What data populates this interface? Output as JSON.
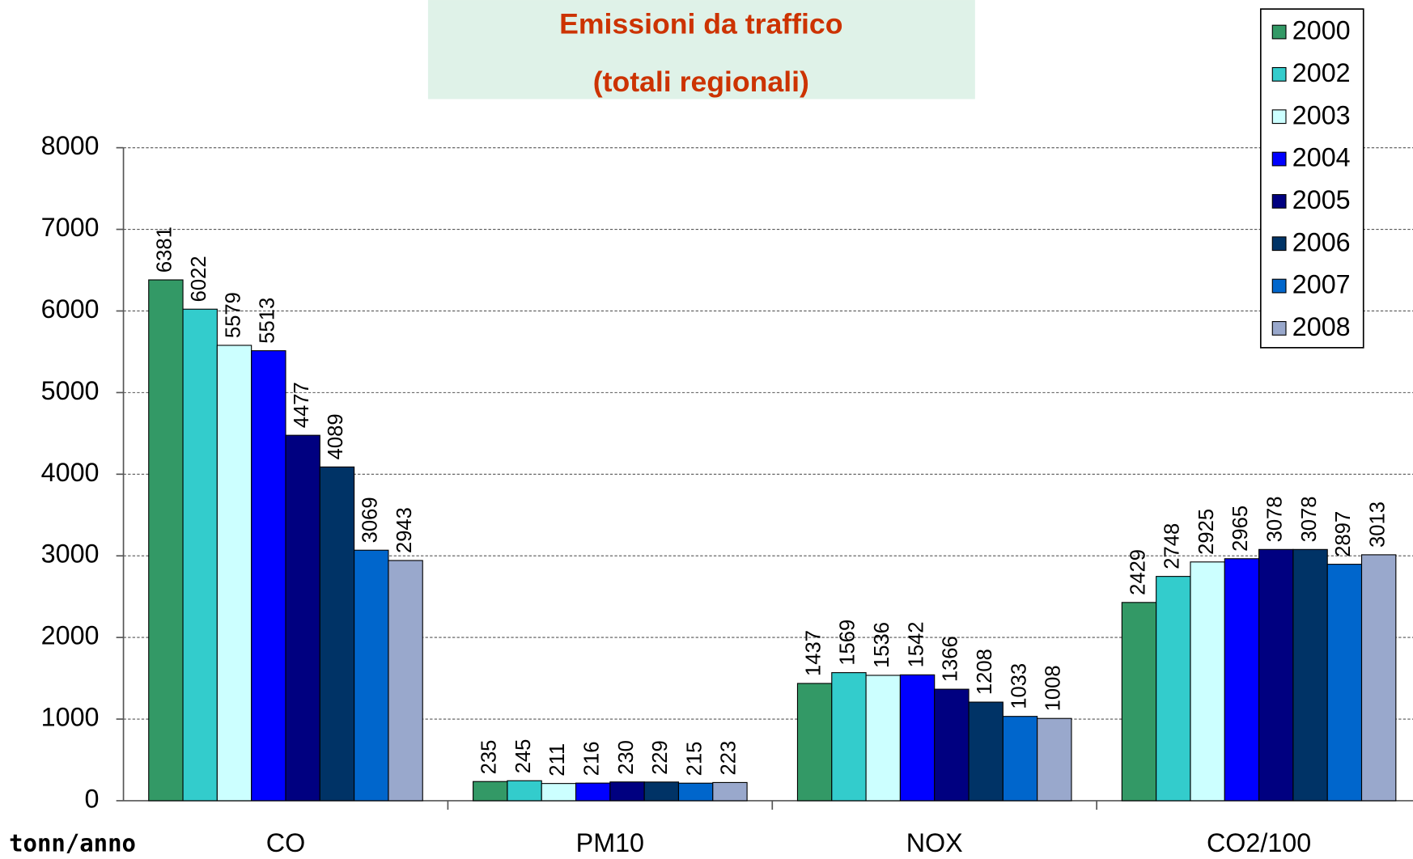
{
  "chart_data": {
    "type": "bar",
    "title": "Emissioni da traffico",
    "subtitle": "(totali regionali)",
    "y_label": "tonn/anno",
    "categories": [
      "CO",
      "PM10",
      "NOX",
      "CO2/100"
    ],
    "series": [
      {
        "name": "2000",
        "color": "#339966",
        "values": [
          6381,
          235,
          1437,
          2429
        ]
      },
      {
        "name": "2002",
        "color": "#33cccc",
        "values": [
          6022,
          245,
          1569,
          2748
        ]
      },
      {
        "name": "2003",
        "color": "#ccffff",
        "values": [
          5579,
          211,
          1536,
          2925
        ]
      },
      {
        "name": "2004",
        "color": "#0000ff",
        "values": [
          5513,
          216,
          1542,
          2965
        ]
      },
      {
        "name": "2005",
        "color": "#000080",
        "values": [
          4477,
          230,
          1366,
          3078
        ]
      },
      {
        "name": "2006",
        "color": "#003366",
        "values": [
          4089,
          229,
          1208,
          3078
        ]
      },
      {
        "name": "2007",
        "color": "#0066cc",
        "values": [
          3069,
          215,
          1033,
          2897
        ]
      },
      {
        "name": "2008",
        "color": "#99a8cc",
        "values": [
          2943,
          223,
          1008,
          3013
        ]
      }
    ],
    "ylim": [
      0,
      8000
    ],
    "yticks": [
      0,
      1000,
      2000,
      3000,
      4000,
      5000,
      6000,
      7000,
      8000
    ],
    "grid": true,
    "legend": "top-right"
  }
}
